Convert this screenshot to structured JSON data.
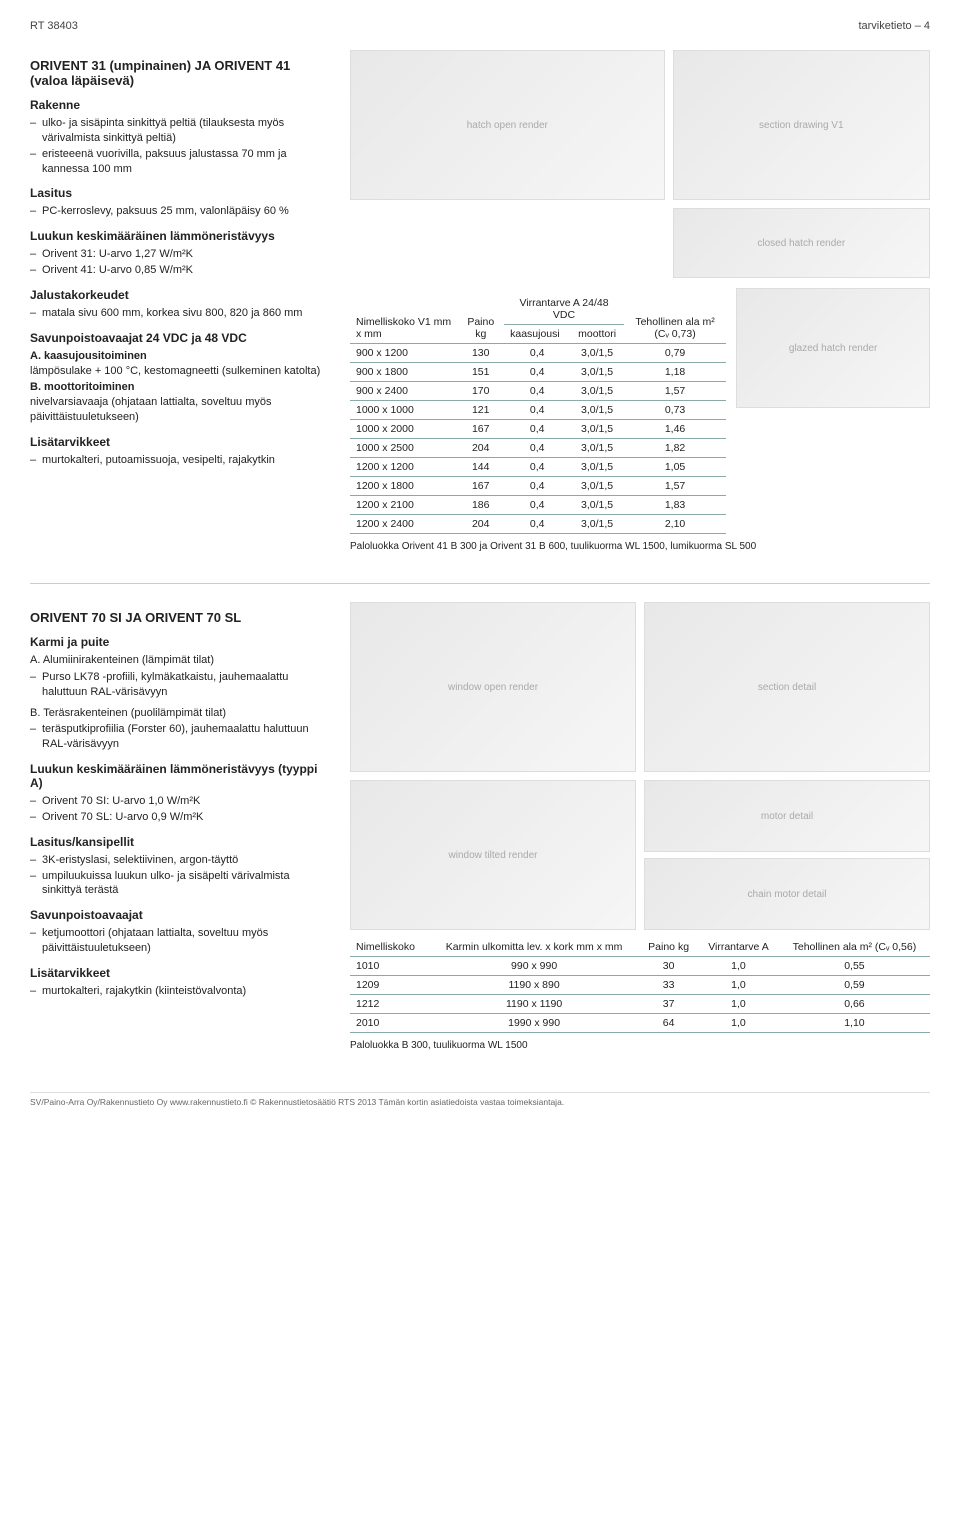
{
  "header": {
    "left": "RT 38403",
    "right": "tarviketieto – 4"
  },
  "section1": {
    "title": "ORIVENT 31 (umpinainen) JA ORIVENT 41 (valoa läpäisevä)",
    "rakenne_h": "Rakenne",
    "rakenne": [
      "ulko- ja sisäpinta sinkittyä peltiä (tilauksesta myös värivalmista sinkittyä peltiä)",
      "eristeeenä vuorivilla, paksuus jalustassa 70 mm ja kannessa 100 mm"
    ],
    "lasitus_h": "Lasitus",
    "lasitus": [
      "PC-kerroslevy, paksuus 25 mm, valonläpäisy 60 %"
    ],
    "lammon_h": "Luukun keskimääräinen lämmöneristävyys",
    "lammon": [
      "Orivent 31: U-arvo 1,27 W/m²K",
      "Orivent 41: U-arvo 0,85 W/m²K"
    ],
    "jalusta_h": "Jalustakorkeudet",
    "jalusta": [
      "matala sivu 600 mm, korkea sivu 800, 820 ja 860 mm"
    ],
    "savun_h": "Savunpoistoavaajat 24 VDC ja 48 VDC",
    "savun_a_label": "A. kaasujousitoiminen",
    "savun_a_text": "lämpösulake + 100 °C, kestomagneetti (sulkeminen katolta)",
    "savun_b_label": "B. moottoritoiminen",
    "savun_b_text": "nivelvarsiavaaja (ohjataan lattialta, soveltuu myös päivittäistuuletukseen)",
    "lisa_h": "Lisätarvikkeet",
    "lisa": [
      "murtokalteri, putoamissuoja, vesipelti, rajakytkin"
    ],
    "table": {
      "head_c1": "Nimelliskoko V1 mm x mm",
      "head_c2": "Paino kg",
      "head_c3": "Virrantarve A 24/48 VDC",
      "head_c3a": "kaasujousi",
      "head_c3b": "moottori",
      "head_c4": "Tehollinen ala m² (Cᵥ 0,73)",
      "rows": [
        [
          "900 x 1200",
          "130",
          "0,4",
          "3,0/1,5",
          "0,79"
        ],
        [
          "900 x 1800",
          "151",
          "0,4",
          "3,0/1,5",
          "1,18"
        ],
        [
          "900 x 2400",
          "170",
          "0,4",
          "3,0/1,5",
          "1,57"
        ],
        [
          "1000 x 1000",
          "121",
          "0,4",
          "3,0/1,5",
          "0,73"
        ],
        [
          "1000 x 2000",
          "167",
          "0,4",
          "3,0/1,5",
          "1,46"
        ],
        [
          "1000 x 2500",
          "204",
          "0,4",
          "3,0/1,5",
          "1,82"
        ],
        [
          "1200 x 1200",
          "144",
          "0,4",
          "3,0/1,5",
          "1,05"
        ],
        [
          "1200 x 1800",
          "167",
          "0,4",
          "3,0/1,5",
          "1,57"
        ],
        [
          "1200 x 2100",
          "186",
          "0,4",
          "3,0/1,5",
          "1,83"
        ],
        [
          "1200 x 2400",
          "204",
          "0,4",
          "3,0/1,5",
          "2,10"
        ]
      ],
      "caption": "Paloluokka Orivent 41 B 300 ja Orivent 31 B 600, tuulikuorma WL 1500, lumikuorma SL 500"
    }
  },
  "section2": {
    "title": "ORIVENT 70 SI JA ORIVENT 70 SL",
    "karmi_h": "Karmi ja puite",
    "karmi_a_label": "A. Alumiinirakenteinen (lämpimät tilat)",
    "karmi_a": [
      "Purso LK78 -profiili, kylmäkatkaistu, jauhemaalattu haluttuun RAL-värisävyyn"
    ],
    "karmi_b_label": "B. Teräsrakenteinen (puolilämpimät tilat)",
    "karmi_b": [
      "teräsputkiprofiilia (Forster 60), jauhemaalattu haluttuun RAL-värisävyyn"
    ],
    "lammon_h": "Luukun keskimääräinen lämmöneristävyys (tyyppi A)",
    "lammon": [
      "Orivent 70 SI: U-arvo 1,0 W/m²K",
      "Orivent 70 SL: U-arvo 0,9 W/m²K"
    ],
    "lasitus_h": "Lasitus/kansipellit",
    "lasitus": [
      "3K-eristyslasi, selektiivinen, argon-täyttö",
      "umpiluukuissa luukun ulko- ja sisäpelti värivalmista sinkittyä terästä"
    ],
    "savun_h": "Savunpoistoavaajat",
    "savun": [
      "ketjumoottori (ohjataan lattialta, soveltuu myös päivittäistuuletukseen)"
    ],
    "lisa_h": "Lisätarvikkeet",
    "lisa": [
      "murtokalteri, rajakytkin (kiinteistövalvonta)"
    ],
    "table": {
      "head_c1": "Nimelliskoko",
      "head_c2": "Karmin ulkomitta lev. x kork mm x mm",
      "head_c3": "Paino kg",
      "head_c4": "Virrantarve A",
      "head_c5": "Tehollinen ala m² (Cᵥ 0,56)",
      "rows": [
        [
          "1010",
          "990 x 990",
          "30",
          "1,0",
          "0,55"
        ],
        [
          "1209",
          "1190 x 890",
          "33",
          "1,0",
          "0,59"
        ],
        [
          "1212",
          "1190 x 1190",
          "37",
          "1,0",
          "0,66"
        ],
        [
          "2010",
          "1990 x 990",
          "64",
          "1,0",
          "1,10"
        ]
      ],
      "caption": "Paloluokka B 300, tuulikuorma WL 1500"
    }
  },
  "footer": {
    "text": "SV/Paino-Arra Oy/Rakennustieto Oy  www.rakennustieto.fi   © Rakennustietosäätiö RTS 2013  Tämän kortin asiatiedoista vastaa toimeksiantaja."
  },
  "images": {
    "s1_img1": "hatch open render",
    "s1_img2": "section drawing V1",
    "s1_img3": "closed hatch render",
    "s1_img4": "glazed hatch render",
    "s2_img1": "window open render",
    "s2_img2": "section detail",
    "s2_img3": "window tilted render",
    "s2_img4": "motor detail",
    "s2_img5": "chain motor detail"
  }
}
